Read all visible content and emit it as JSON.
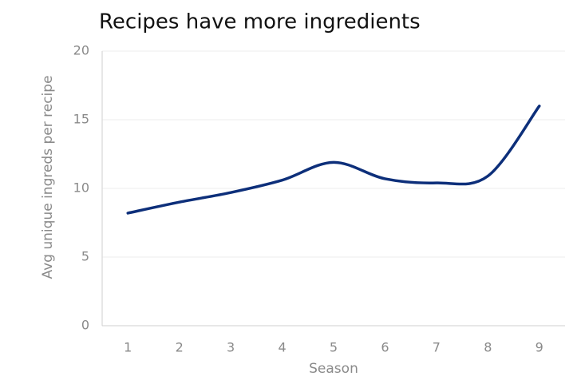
{
  "chart_data": {
    "type": "line",
    "title": "Recipes have more ingredients",
    "x_label": "Season",
    "y_label": "Avg unique ingreds per recipe",
    "x": [
      1,
      2,
      3,
      4,
      5,
      6,
      7,
      8,
      9
    ],
    "xlim": [
      0.5,
      9.5
    ],
    "xticks": [
      1,
      2,
      3,
      4,
      5,
      6,
      7,
      8,
      9
    ],
    "ylim": [
      0,
      20
    ],
    "yticks": [
      0,
      5,
      10,
      15,
      20
    ],
    "series": [
      {
        "name": "Avg unique ingreds per recipe",
        "color": "#0d2f7a",
        "values": [
          8.2,
          9.0,
          9.7,
          10.6,
          11.9,
          10.7,
          10.4,
          10.9,
          16.0
        ]
      }
    ],
    "grid": true,
    "smooth": true
  }
}
